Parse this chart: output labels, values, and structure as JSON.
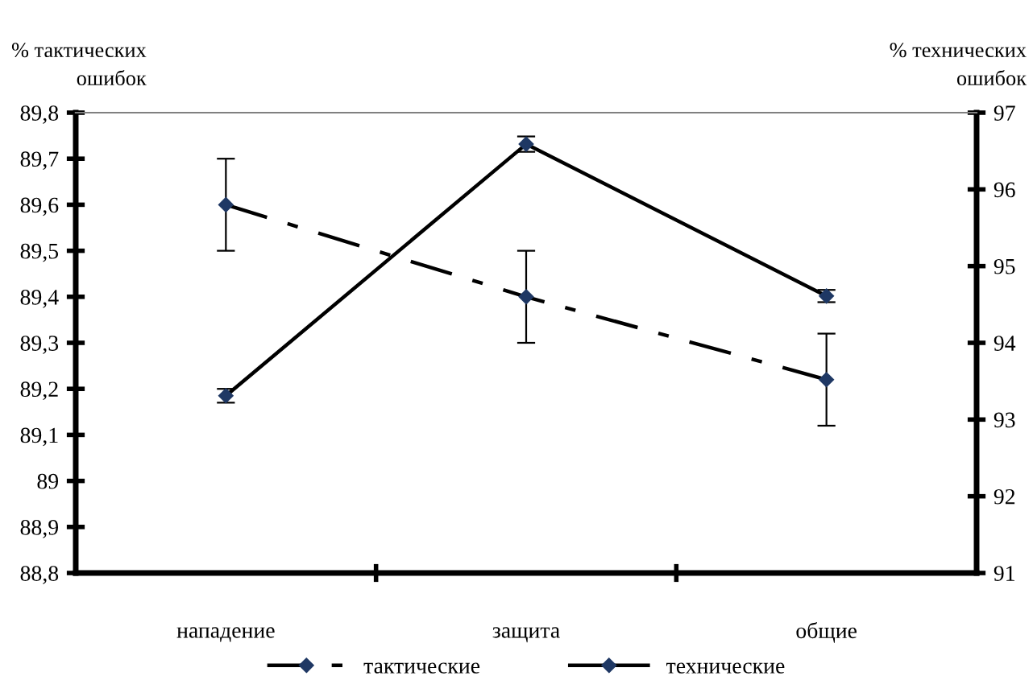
{
  "chart_data": {
    "type": "line",
    "ylabel": "% тактических\nошибок",
    "y2label": "% технических\nошибок",
    "categories": [
      "нападение",
      "защита",
      "общие"
    ],
    "series": [
      {
        "name": "тактические",
        "color": "#000000",
        "values": [
          89.6,
          89.4,
          89.22
        ],
        "errors": [
          0.1,
          0.1,
          0.1
        ],
        "line_style": "dashdot"
      },
      {
        "name": "технические",
        "color": "#000000",
        "values": [
          93.31,
          96.59,
          94.61
        ],
        "errors": [
          0.09,
          0.1,
          0.08
        ],
        "axis": "y2",
        "line_style": "solid"
      }
    ],
    "ylim": [
      88.8,
      89.8
    ],
    "yticks": [
      {
        "value": 88.8,
        "label": "88,8"
      },
      {
        "value": 88.9,
        "label": "88,9"
      },
      {
        "value": 89,
        "label": "89"
      },
      {
        "value": 89.1,
        "label": "89,1"
      },
      {
        "value": 89.2,
        "label": "89,2"
      },
      {
        "value": 89.3,
        "label": "89,3"
      },
      {
        "value": 89.4,
        "label": "89,4"
      },
      {
        "value": 89.5,
        "label": "89,5"
      },
      {
        "value": 89.6,
        "label": "89,6"
      },
      {
        "value": 89.7,
        "label": "89,7"
      },
      {
        "value": 89.8,
        "label": "89,8"
      }
    ],
    "y2lim": [
      91,
      97
    ],
    "y2ticks": [
      91,
      92,
      93,
      94,
      95,
      96,
      97
    ],
    "marker": "diamond",
    "legend": "bottom",
    "grid": false
  }
}
